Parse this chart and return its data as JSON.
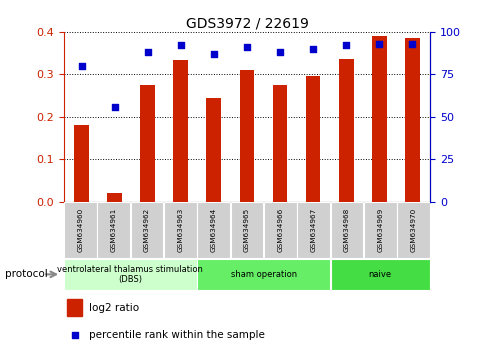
{
  "title": "GDS3972 / 22619",
  "samples": [
    "GSM634960",
    "GSM634961",
    "GSM634962",
    "GSM634963",
    "GSM634964",
    "GSM634965",
    "GSM634966",
    "GSM634967",
    "GSM634968",
    "GSM634969",
    "GSM634970"
  ],
  "log2_ratio": [
    0.18,
    0.02,
    0.275,
    0.333,
    0.245,
    0.31,
    0.275,
    0.295,
    0.335,
    0.39,
    0.385
  ],
  "percentile_rank": [
    80,
    56,
    88,
    92,
    87,
    91,
    88,
    90,
    92,
    93,
    93
  ],
  "bar_color": "#cc2200",
  "dot_color": "#0000cc",
  "ylim_left": [
    0,
    0.4
  ],
  "ylim_right": [
    0,
    100
  ],
  "yticks_left": [
    0,
    0.1,
    0.2,
    0.3,
    0.4
  ],
  "yticks_right": [
    0,
    25,
    50,
    75,
    100
  ],
  "groups": [
    {
      "label": "ventrolateral thalamus stimulation\n(DBS)",
      "start": 0,
      "end": 3,
      "color": "#ccffcc"
    },
    {
      "label": "sham operation",
      "start": 4,
      "end": 7,
      "color": "#66ee66"
    },
    {
      "label": "naive",
      "start": 8,
      "end": 10,
      "color": "#44dd44"
    }
  ],
  "protocol_label": "protocol",
  "legend_bar_label": "log2 ratio",
  "legend_dot_label": "percentile rank within the sample",
  "background_color": "#ffffff",
  "plot_bg_color": "#ffffff",
  "tick_label_color_left": "#cc2200",
  "tick_label_color_right": "#0000cc",
  "label_box_color": "#d0d0d0",
  "bar_width": 0.45
}
